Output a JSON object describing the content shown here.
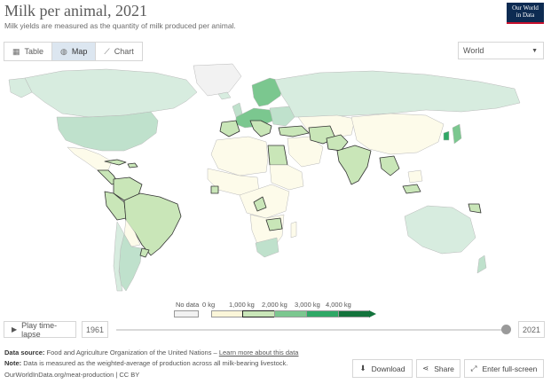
{
  "header": {
    "title": "Milk per animal, 2021",
    "subtitle": "Milk yields are measured as the quantity of milk produced per animal.",
    "logo_line1": "Our World",
    "logo_line2": "in Data"
  },
  "tabs": [
    {
      "label": "Table",
      "icon": "table-icon"
    },
    {
      "label": "Map",
      "icon": "globe-icon",
      "active": true
    },
    {
      "label": "Chart",
      "icon": "line-chart-icon"
    }
  ],
  "region_select": {
    "value": "World"
  },
  "legend": {
    "no_data_label": "No data",
    "thresholds": [
      "0 kg",
      "1,000 kg",
      "2,000 kg",
      "3,000 kg",
      "4,000 kg"
    ],
    "colors": {
      "no_data": "#f2f2f2",
      "bin1": "#fbf6d9",
      "bin2": "#c9e6b8",
      "bin3": "#7bc78f",
      "bin4": "#2fa866",
      "bin5": "#13733c",
      "land_default": "#fdfbea",
      "water": "#ffffff"
    }
  },
  "timeline": {
    "play_label": "Play time-lapse",
    "start_year": "1961",
    "end_year": "2021",
    "position": 1.0
  },
  "footer": {
    "source_label": "Data source:",
    "source_text": "Food and Agriculture Organization of the United Nations –",
    "source_link": "Learn more about this data",
    "note_label": "Note:",
    "note_text": "Data is measured as the weighted-average of production across all milk-bearing livestock.",
    "url": "OurWorldInData.org/meat-production | CC BY"
  },
  "actions": {
    "download": "Download",
    "share": "Share",
    "fullscreen": "Enter full-screen"
  }
}
